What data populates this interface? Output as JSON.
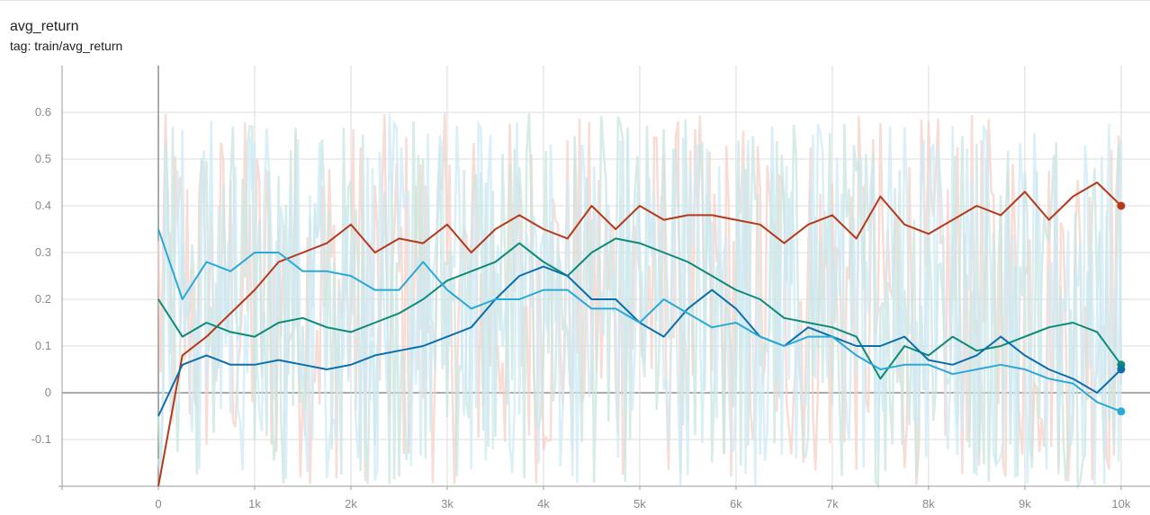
{
  "header": {
    "title": "avg_return",
    "subtitle": "tag: train/avg_return"
  },
  "chart_data": {
    "type": "line",
    "title": "avg_return",
    "subtitle": "tag: train/avg_return",
    "xlabel": "",
    "ylabel": "",
    "xlim": [
      -1000,
      10300
    ],
    "ylim": [
      -0.2,
      0.7
    ],
    "x_ticks": [
      {
        "v": 0,
        "label": "0"
      },
      {
        "v": 1000,
        "label": "1k"
      },
      {
        "v": 2000,
        "label": "2k"
      },
      {
        "v": 3000,
        "label": "3k"
      },
      {
        "v": 4000,
        "label": "4k"
      },
      {
        "v": 5000,
        "label": "5k"
      },
      {
        "v": 6000,
        "label": "6k"
      },
      {
        "v": 7000,
        "label": "7k"
      },
      {
        "v": 8000,
        "label": "8k"
      },
      {
        "v": 9000,
        "label": "9k"
      },
      {
        "v": 10000,
        "label": "10k"
      }
    ],
    "y_ticks": [
      {
        "v": -0.1,
        "label": "-0.1"
      },
      {
        "v": 0,
        "label": "0"
      },
      {
        "v": 0.1,
        "label": "0.1"
      },
      {
        "v": 0.2,
        "label": "0.2"
      },
      {
        "v": 0.3,
        "label": "0.3"
      },
      {
        "v": 0.4,
        "label": "0.4"
      },
      {
        "v": 0.5,
        "label": "0.5"
      },
      {
        "v": 0.6,
        "label": "0.6"
      }
    ],
    "grid": true,
    "legend": "none",
    "raw_band": {
      "low": -0.2,
      "high": 0.6,
      "colors": [
        "#f6d2c8",
        "#c9e6e0",
        "#cfe9f5"
      ]
    },
    "series": [
      {
        "color": "#b5391a",
        "x": [
          0,
          250,
          500,
          750,
          1000,
          1250,
          1500,
          1750,
          2000,
          2250,
          2500,
          2750,
          3000,
          3250,
          3500,
          3750,
          4000,
          4250,
          4500,
          4750,
          5000,
          5250,
          5500,
          5750,
          6000,
          6250,
          6500,
          6750,
          7000,
          7250,
          7500,
          7750,
          8000,
          8250,
          8500,
          8750,
          9000,
          9250,
          9500,
          9750,
          10000
        ],
        "y": [
          -0.2,
          0.08,
          0.12,
          0.17,
          0.22,
          0.28,
          0.3,
          0.32,
          0.36,
          0.3,
          0.33,
          0.32,
          0.36,
          0.3,
          0.35,
          0.38,
          0.35,
          0.33,
          0.4,
          0.35,
          0.4,
          0.37,
          0.38,
          0.38,
          0.37,
          0.36,
          0.32,
          0.36,
          0.38,
          0.33,
          0.42,
          0.36,
          0.34,
          0.37,
          0.4,
          0.38,
          0.43,
          0.37,
          0.42,
          0.45,
          0.4
        ]
      },
      {
        "color": "#0e8a79",
        "x": [
          0,
          250,
          500,
          750,
          1000,
          1250,
          1500,
          1750,
          2000,
          2250,
          2500,
          2750,
          3000,
          3250,
          3500,
          3750,
          4000,
          4250,
          4500,
          4750,
          5000,
          5250,
          5500,
          5750,
          6000,
          6250,
          6500,
          6750,
          7000,
          7250,
          7500,
          7750,
          8000,
          8250,
          8500,
          8750,
          9000,
          9250,
          9500,
          9750,
          10000
        ],
        "y": [
          0.2,
          0.12,
          0.15,
          0.13,
          0.12,
          0.15,
          0.16,
          0.14,
          0.13,
          0.15,
          0.17,
          0.2,
          0.24,
          0.26,
          0.28,
          0.32,
          0.28,
          0.25,
          0.3,
          0.33,
          0.32,
          0.3,
          0.28,
          0.25,
          0.22,
          0.2,
          0.16,
          0.15,
          0.14,
          0.12,
          0.03,
          0.1,
          0.08,
          0.12,
          0.09,
          0.1,
          0.12,
          0.14,
          0.15,
          0.13,
          0.06
        ]
      },
      {
        "color": "#0b6fad",
        "x": [
          0,
          250,
          500,
          750,
          1000,
          1250,
          1500,
          1750,
          2000,
          2250,
          2500,
          2750,
          3000,
          3250,
          3500,
          3750,
          4000,
          4250,
          4500,
          4750,
          5000,
          5250,
          5500,
          5750,
          6000,
          6250,
          6500,
          6750,
          7000,
          7250,
          7500,
          7750,
          8000,
          8250,
          8500,
          8750,
          9000,
          9250,
          9500,
          9750,
          10000
        ],
        "y": [
          -0.05,
          0.06,
          0.08,
          0.06,
          0.06,
          0.07,
          0.06,
          0.05,
          0.06,
          0.08,
          0.09,
          0.1,
          0.12,
          0.14,
          0.2,
          0.25,
          0.27,
          0.25,
          0.2,
          0.2,
          0.15,
          0.12,
          0.18,
          0.22,
          0.18,
          0.12,
          0.1,
          0.14,
          0.12,
          0.1,
          0.1,
          0.12,
          0.07,
          0.06,
          0.08,
          0.12,
          0.08,
          0.05,
          0.03,
          0.0,
          0.05
        ]
      },
      {
        "color": "#2aa9d8",
        "x": [
          0,
          250,
          500,
          750,
          1000,
          1250,
          1500,
          1750,
          2000,
          2250,
          2500,
          2750,
          3000,
          3250,
          3500,
          3750,
          4000,
          4250,
          4500,
          4750,
          5000,
          5250,
          5500,
          5750,
          6000,
          6250,
          6500,
          6750,
          7000,
          7250,
          7500,
          7750,
          8000,
          8250,
          8500,
          8750,
          9000,
          9250,
          9500,
          9750,
          10000
        ],
        "y": [
          0.35,
          0.2,
          0.28,
          0.26,
          0.3,
          0.3,
          0.26,
          0.26,
          0.25,
          0.22,
          0.22,
          0.28,
          0.22,
          0.18,
          0.2,
          0.2,
          0.22,
          0.22,
          0.18,
          0.18,
          0.15,
          0.2,
          0.17,
          0.14,
          0.15,
          0.12,
          0.1,
          0.12,
          0.12,
          0.08,
          0.05,
          0.06,
          0.06,
          0.04,
          0.05,
          0.06,
          0.05,
          0.03,
          0.02,
          -0.02,
          -0.04
        ]
      }
    ]
  }
}
